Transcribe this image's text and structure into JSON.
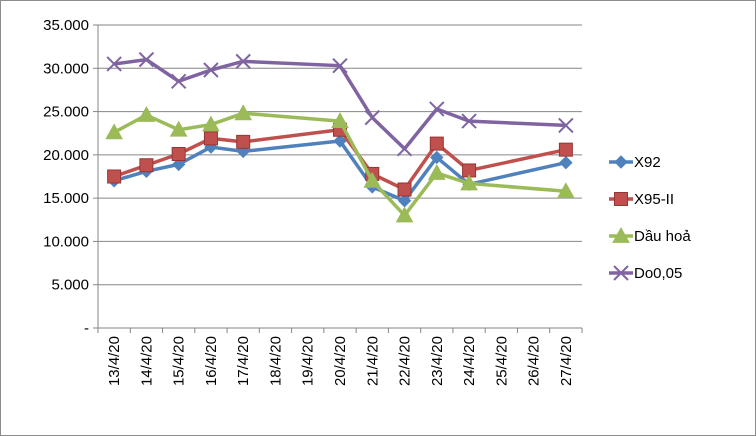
{
  "chart_data": {
    "type": "line",
    "title": "",
    "xlabel": "",
    "ylabel": "",
    "categories": [
      "13/4/20",
      "14/4/20",
      "15/4/20",
      "16/4/20",
      "17/4/20",
      "18/4/20",
      "19/4/20",
      "20/4/20",
      "21/4/20",
      "22/4/20",
      "23/4/20",
      "24/4/20",
      "25/4/20",
      "26/4/20",
      "27/4/20"
    ],
    "ylim": [
      0,
      35000
    ],
    "yticks": [
      "-",
      "5.000",
      "10.000",
      "15.000",
      "20.000",
      "25.000",
      "30.000",
      "35.000"
    ],
    "grid": true,
    "legend_position": "right",
    "series": [
      {
        "name": "X92",
        "color": "#4f81bd",
        "marker": "diamond",
        "values": [
          17000,
          18100,
          18900,
          20900,
          20400,
          null,
          null,
          21600,
          16300,
          14700,
          19700,
          16600,
          null,
          null,
          19100
        ]
      },
      {
        "name": "X95-II",
        "color": "#c0504d",
        "marker": "square",
        "values": [
          17500,
          18800,
          20100,
          21900,
          21500,
          null,
          null,
          22900,
          17800,
          16000,
          21300,
          18200,
          null,
          null,
          20600
        ]
      },
      {
        "name": "Dầu hoả",
        "color": "#9bbb59",
        "marker": "triangle",
        "values": [
          22600,
          24600,
          22900,
          23500,
          24800,
          null,
          null,
          23900,
          17000,
          13000,
          17900,
          16700,
          null,
          null,
          15800
        ]
      },
      {
        "name": "Do0,05",
        "color": "#8064a2",
        "marker": "x",
        "values": [
          30500,
          31000,
          28500,
          29800,
          30800,
          null,
          null,
          30300,
          24300,
          20700,
          25300,
          23900,
          null,
          null,
          23400
        ]
      }
    ]
  }
}
